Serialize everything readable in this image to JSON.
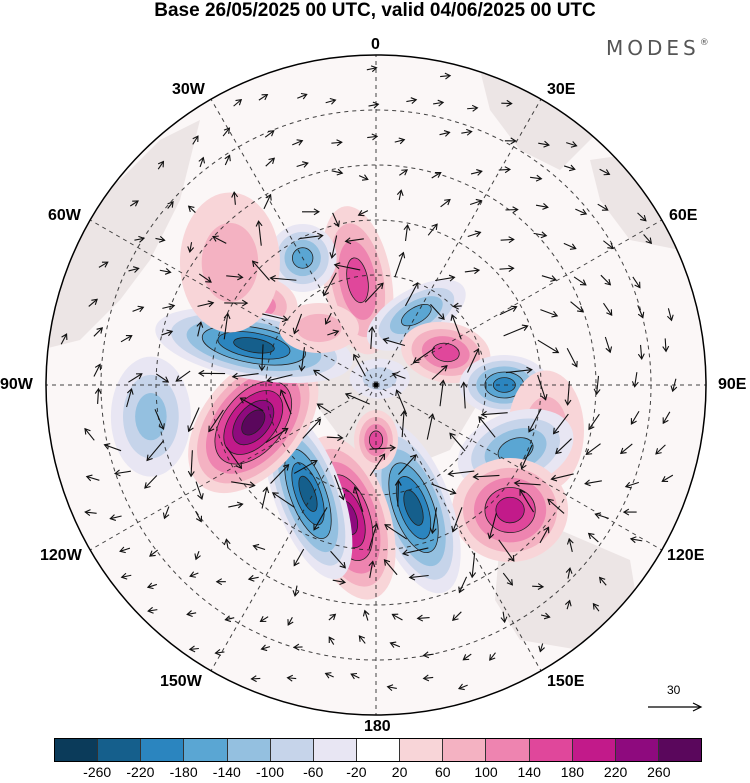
{
  "title": "Base 26/05/2025 00 UTC, valid 04/06/2025 00 UTC",
  "brand": {
    "name": "MODES",
    "mark": "®"
  },
  "longitude_labels": {
    "top": "0",
    "bottom": "180",
    "left": "90W",
    "right": "90E",
    "w30": "30W",
    "e30": "30E",
    "w60": "60W",
    "e60": "60E",
    "w120": "120W",
    "e120": "120E",
    "w150": "150W",
    "e150": "150E"
  },
  "reference_vector": {
    "label": "30"
  },
  "colorbar": {
    "colors": [
      "#0b3b5a",
      "#155f8c",
      "#2b85bf",
      "#5aa6d3",
      "#94c0e0",
      "#c6d4ea",
      "#e8e6f3",
      "#ffffff",
      "#f8d5d8",
      "#f4b2c2",
      "#ee84b0",
      "#e0479b",
      "#c21a8a",
      "#8e0a7e",
      "#5a075c"
    ],
    "tick_labels": [
      "-260",
      "-220",
      "-180",
      "-140",
      "-100",
      "-60",
      "-20",
      "20",
      "60",
      "100",
      "140",
      "180",
      "220",
      "260"
    ]
  },
  "anomalies": [
    {
      "lon": 350,
      "lat": 61,
      "sign": "pos",
      "rx": 34,
      "ry": 75,
      "rot": -10,
      "level": 3
    },
    {
      "lon": 330,
      "lat": 50,
      "sign": "neg",
      "rx": 34,
      "ry": 34,
      "rot": 0,
      "level": 3
    },
    {
      "lon": 305,
      "lat": 52,
      "sign": "pos",
      "rx": 36,
      "ry": 28,
      "rot": 10,
      "level": 2
    },
    {
      "lon": 30,
      "lat": 68,
      "sign": "neg",
      "rx": 55,
      "ry": 26,
      "rot": -30,
      "level": 3
    },
    {
      "lon": 65,
      "lat": 69,
      "sign": "pos",
      "rx": 45,
      "ry": 30,
      "rot": 10,
      "level": 3
    },
    {
      "lon": 90,
      "lat": 55,
      "sign": "neg",
      "rx": 45,
      "ry": 30,
      "rot": 0,
      "level": 4
    },
    {
      "lon": 105,
      "lat": 42,
      "sign": "pos",
      "rx": 38,
      "ry": 60,
      "rot": 0,
      "level": 1
    },
    {
      "lon": 115,
      "lat": 48,
      "sign": "neg",
      "rx": 60,
      "ry": 38,
      "rot": -20,
      "level": 3
    },
    {
      "lon": 133,
      "lat": 40,
      "sign": "pos",
      "rx": 58,
      "ry": 52,
      "rot": 0,
      "level": 4
    },
    {
      "lon": 163,
      "lat": 55,
      "sign": "neg",
      "rx": 38,
      "ry": 90,
      "rot": -20,
      "level": 5
    },
    {
      "lon": 192,
      "lat": 53,
      "sign": "pos",
      "rx": 42,
      "ry": 85,
      "rot": -18,
      "level": 5
    },
    {
      "lon": 180,
      "lat": 75,
      "sign": "pos",
      "rx": 22,
      "ry": 30,
      "rot": 0,
      "level": 3
    },
    {
      "lon": 212,
      "lat": 55,
      "sign": "neg",
      "rx": 34,
      "ry": 90,
      "rot": -20,
      "level": 5
    },
    {
      "lon": 253,
      "lat": 55,
      "sign": "pos",
      "rx": 50,
      "ry": 82,
      "rot": 40,
      "level": 6
    },
    {
      "lon": 288,
      "lat": 55,
      "sign": "neg",
      "rx": 100,
      "ry": 34,
      "rot": 10,
      "level": 5
    },
    {
      "lon": 262,
      "lat": 28,
      "sign": "neg",
      "rx": 40,
      "ry": 60,
      "rot": 0,
      "level": 2
    },
    {
      "lon": 310,
      "lat": 38,
      "sign": "pos",
      "rx": 50,
      "ry": 70,
      "rot": 0,
      "level": 1
    },
    {
      "lon": 315,
      "lat": 68,
      "sign": "pos",
      "rx": 40,
      "ry": 25,
      "rot": 0,
      "level": 1
    },
    {
      "lon": 30,
      "lat": 88,
      "sign": "neg",
      "rx": 30,
      "ry": 20,
      "rot": 0,
      "level": 1
    }
  ]
}
